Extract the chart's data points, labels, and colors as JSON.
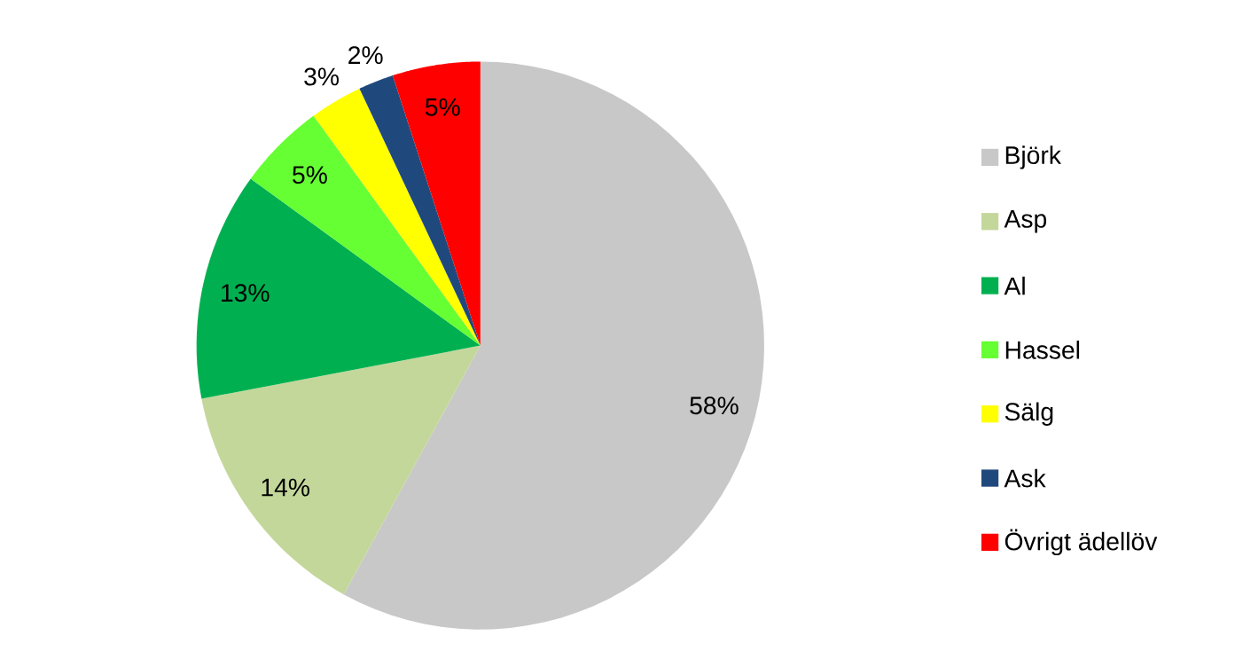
{
  "chart_data": {
    "type": "pie",
    "categories": [
      "Björk",
      "Asp",
      "Al",
      "Hassel",
      "Sälg",
      "Ask",
      "Övrigt ädellöv"
    ],
    "values": [
      58,
      14,
      13,
      5,
      3,
      2,
      5
    ],
    "value_labels": [
      "58%",
      "14%",
      "13%",
      "5%",
      "3%",
      "2%",
      "5%"
    ],
    "colors": [
      "#c8c8c8",
      "#c4d79b",
      "#00b050",
      "#66ff33",
      "#ffff00",
      "#1f497d",
      "#ff0000"
    ],
    "legend": "right"
  }
}
